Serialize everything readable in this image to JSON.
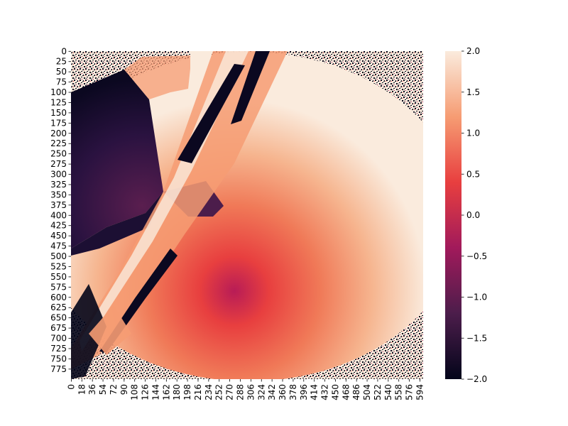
{
  "chart_data": {
    "type": "heatmap",
    "title": "",
    "xlabel": "",
    "ylabel": "",
    "grid": false,
    "x_ticks": [
      0,
      18,
      36,
      54,
      72,
      90,
      108,
      126,
      144,
      162,
      180,
      198,
      216,
      234,
      252,
      270,
      288,
      306,
      324,
      342,
      360,
      378,
      396,
      414,
      432,
      450,
      468,
      486,
      504,
      522,
      540,
      558,
      576,
      594
    ],
    "y_ticks": [
      0,
      25,
      50,
      75,
      100,
      125,
      150,
      175,
      200,
      225,
      250,
      275,
      300,
      325,
      350,
      375,
      400,
      425,
      450,
      475,
      500,
      525,
      550,
      575,
      600,
      625,
      650,
      675,
      700,
      725,
      750,
      775
    ],
    "x_range": [
      0,
      600
    ],
    "y_range": [
      0,
      800
    ],
    "colorbar": {
      "ticks": [
        2.0,
        1.5,
        1.0,
        0.5,
        0.0,
        -0.5,
        -1.0,
        -1.5,
        -2.0
      ],
      "tick_labels": [
        "2.0",
        "1.5",
        "1.0",
        "0.5",
        "0.0",
        "−0.5",
        "−1.0",
        "−1.5",
        "−2.0"
      ],
      "vmin": -2.0,
      "vmax": 2.0,
      "colormap": "rocket",
      "color_stops": [
        "#03051a",
        "#4c1d4b",
        "#a11a5b",
        "#e83f3f",
        "#f69c73",
        "#faebdd"
      ]
    }
  }
}
